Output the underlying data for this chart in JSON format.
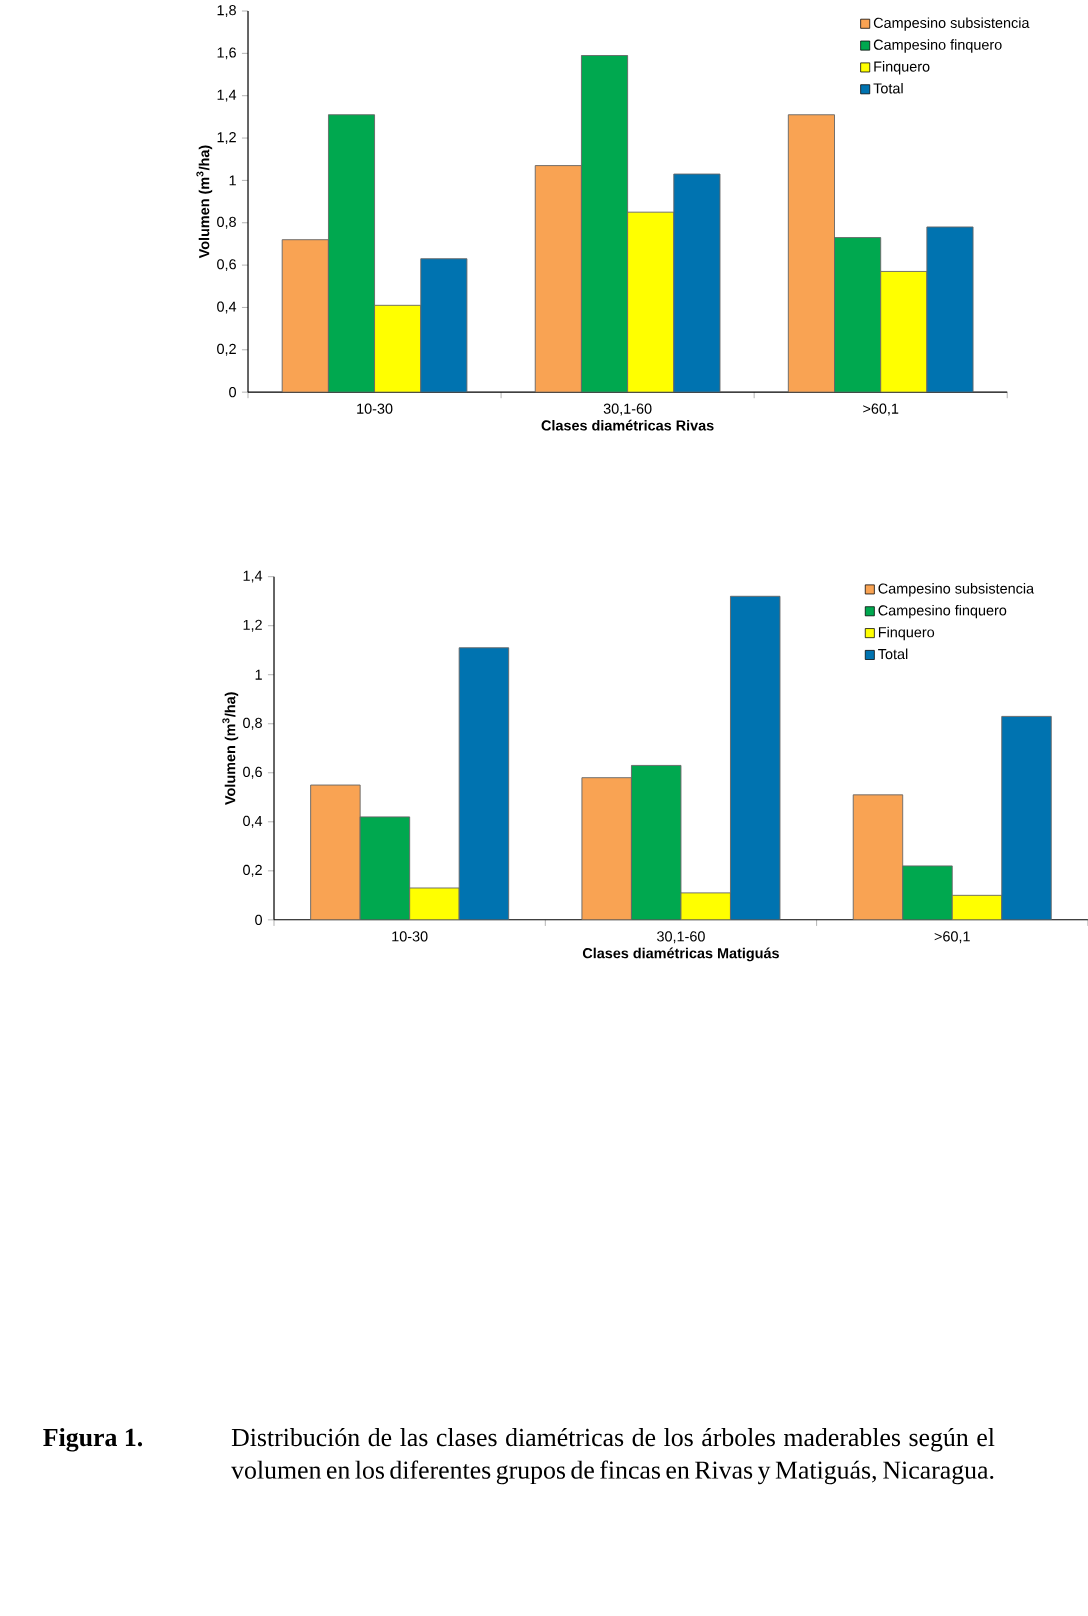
{
  "chart_data": [
    {
      "type": "bar",
      "xlabel": "Clases diamétricas Rivas",
      "ylabel": "Volumen (m$^{3}$/ha)",
      "categories": [
        "10-30",
        "30,1-60",
        ">60,1"
      ],
      "series": [
        {
          "name": "Campesino  subsistencia",
          "color": "#f9a353",
          "values": [
            0.72,
            1.07,
            1.31
          ]
        },
        {
          "name": "Campesino finquero",
          "color": "#00a84f",
          "values": [
            1.31,
            1.59,
            0.73
          ]
        },
        {
          "name": "Finquero",
          "color": "#ffff00",
          "values": [
            0.41,
            0.85,
            0.57
          ]
        },
        {
          "name": "Total",
          "color": "#0073b0",
          "values": [
            0.63,
            1.03,
            0.78
          ]
        }
      ],
      "ylim": [
        0,
        1.8
      ],
      "yticks": [
        0,
        {
          "value": 0.2,
          "label": "0,2"
        },
        {
          "value": 0.4,
          "label": "0,4"
        },
        {
          "value": 0.6,
          "label": "0,6"
        },
        {
          "value": 0.8,
          "label": "0,8"
        },
        1,
        {
          "value": 1.2,
          "label": "1,2"
        },
        {
          "value": 1.4,
          "label": "1,4"
        },
        {
          "value": 1.6,
          "label": "1,6"
        },
        {
          "value": 1.8,
          "label": "1,8"
        }
      ],
      "legend": "top right"
    },
    {
      "type": "bar",
      "xlabel": "Clases diamétricas Matiguás",
      "ylabel": "Volumen (m$^{3}$/ha)",
      "categories": [
        "10-30",
        "30,1-60",
        ">60,1"
      ],
      "series": [
        {
          "name": "Campesino  subsistencia",
          "color": "#f9a353",
          "values": [
            0.55,
            0.58,
            0.51
          ]
        },
        {
          "name": "Campesino finquero",
          "color": "#00a84f",
          "values": [
            0.42,
            0.63,
            0.22
          ]
        },
        {
          "name": "Finquero",
          "color": "#ffff00",
          "values": [
            0.13,
            0.11,
            0.1
          ]
        },
        {
          "name": "Total",
          "color": "#0073b0",
          "values": [
            1.11,
            1.32,
            0.83
          ]
        }
      ],
      "ylim": [
        0,
        1.4
      ],
      "yticks": [
        0,
        {
          "value": 0.2,
          "label": "0,2"
        },
        {
          "value": 0.4,
          "label": "0,4"
        },
        {
          "value": 0.6,
          "label": "0,6"
        },
        {
          "value": 0.8,
          "label": "0,8"
        },
        1,
        {
          "value": 1.2,
          "label": "1,2"
        },
        {
          "value": 1.4,
          "label": "1,4"
        }
      ],
      "legend": "top right",
      "annotations": [
        "Figura 1.",
        "Distribución de las clases diamétricas de los árboles maderables según el volumen en los diferentes grupos de fincas en Rivas y Matiguás, Nicaragua."
      ]
    }
  ]
}
